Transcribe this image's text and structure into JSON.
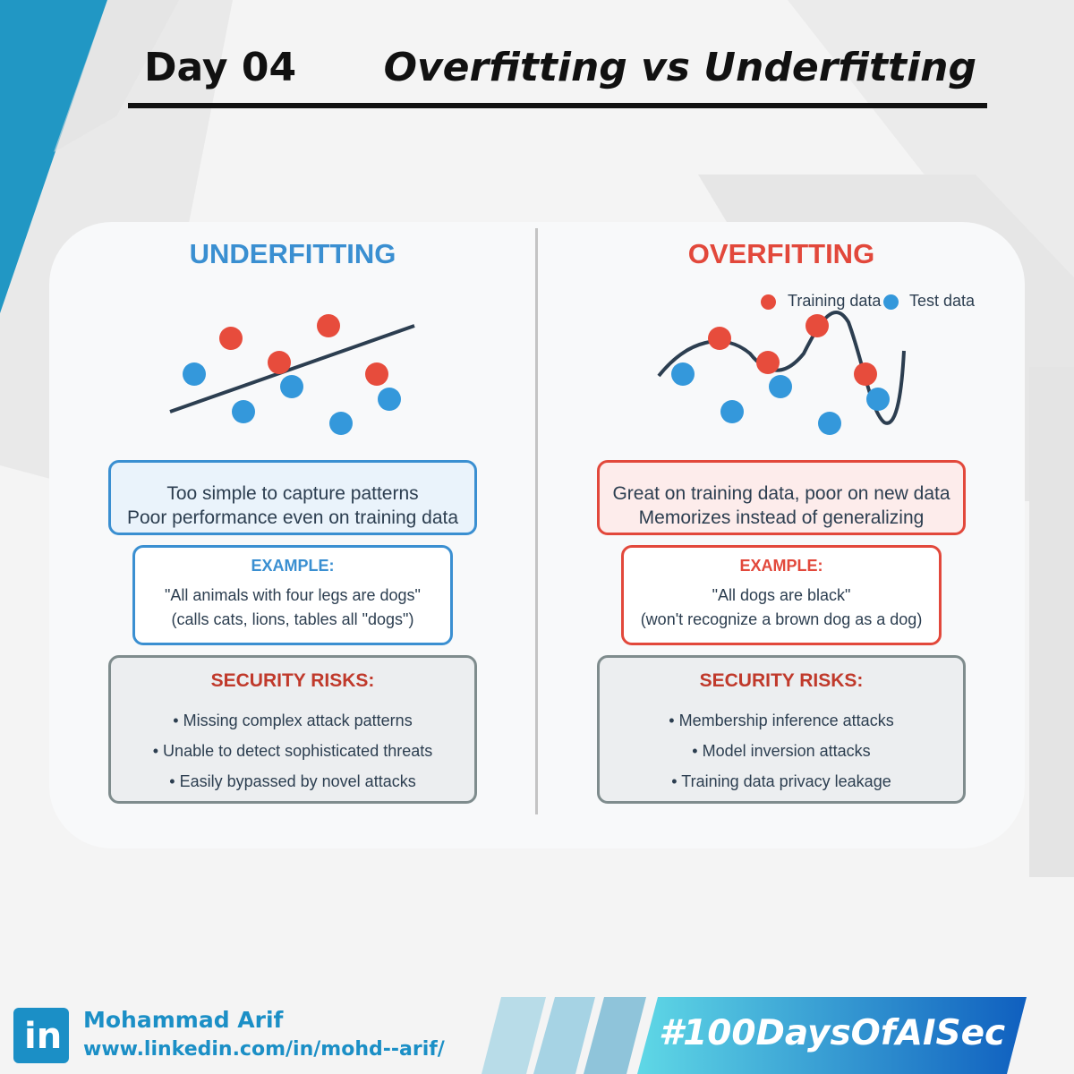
{
  "header": {
    "day": "Day 04",
    "topic": "Overfitting vs Underfitting"
  },
  "colors": {
    "underfitting_accent": "#3a8fd1",
    "overfitting_accent": "#e2483b",
    "training_point": "#e74c3c",
    "test_point": "#3498db",
    "fit_curve": "#2c3e50",
    "risk_heading": "#c0392b",
    "brand": "#1b8fc6"
  },
  "underfitting": {
    "title": "UNDERFITTING",
    "description": [
      "Too simple to capture patterns",
      "Poor performance even on training data"
    ],
    "example": {
      "heading": "EXAMPLE:",
      "lines": [
        "\"All animals with four legs are dogs\"",
        "(calls cats, lions, tables all \"dogs\")"
      ]
    },
    "risks": {
      "heading": "SECURITY RISKS:",
      "items": [
        "• Missing complex attack patterns",
        "• Unable to detect sophisticated threats",
        "• Easily bypassed by novel attacks"
      ]
    }
  },
  "overfitting": {
    "title": "OVERFITTING",
    "legend": {
      "training": "Training data",
      "test": "Test data"
    },
    "description": [
      "Great on training data, poor on new data",
      "Memorizes instead of generalizing"
    ],
    "example": {
      "heading": "EXAMPLE:",
      "lines": [
        "\"All dogs are black\"",
        "(won't recognize a brown dog as a dog)"
      ]
    },
    "risks": {
      "heading": "SECURITY RISKS:",
      "items": [
        "• Membership inference attacks",
        "• Model inversion attacks",
        "• Training data privacy leakage"
      ]
    }
  },
  "footer": {
    "logo_text": "in",
    "author": "Mohammad Arif",
    "url": "www.linkedin.com/in/mohd--arif/",
    "hashtag": "#100DaysOfAISec"
  },
  "icons": {
    "linkedin": "linkedin-logo-icon"
  }
}
